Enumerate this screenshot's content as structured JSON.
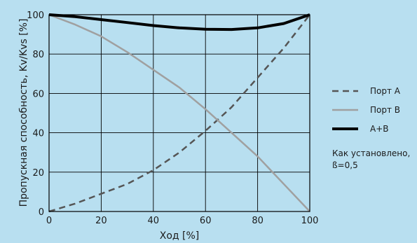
{
  "chart_data": {
    "type": "line",
    "xlabel": "Ход [%]",
    "ylabel": "Пропускная способность, Kv/Kvs [%]",
    "xlim": [
      0,
      100
    ],
    "ylim": [
      0,
      100
    ],
    "xticks": [
      0,
      20,
      40,
      60,
      80,
      100
    ],
    "yticks": [
      0,
      20,
      40,
      60,
      80,
      100
    ],
    "grid": true,
    "legend_position": "right",
    "series": [
      {
        "name": "Порт A",
        "style": "dashed",
        "color": "#555555",
        "x": [
          0,
          10,
          20,
          30,
          40,
          50,
          60,
          70,
          80,
          90,
          100
        ],
        "y": [
          0,
          4,
          9,
          14,
          21,
          30,
          41,
          53,
          68,
          83,
          100
        ]
      },
      {
        "name": "Порт B",
        "style": "solid",
        "color": "#a0a0a0",
        "x": [
          0,
          10,
          20,
          30,
          40,
          50,
          60,
          70,
          80,
          90,
          100
        ],
        "y": [
          100,
          95,
          89,
          81,
          72,
          63,
          52,
          40,
          28,
          14,
          0
        ]
      },
      {
        "name": "A+B",
        "style": "solid-bold",
        "color": "#000000",
        "x": [
          0,
          10,
          20,
          30,
          40,
          50,
          60,
          70,
          80,
          90,
          100
        ],
        "y": [
          100,
          99,
          97.5,
          96,
          94.5,
          93.3,
          92.6,
          92.5,
          93.3,
          95.5,
          100
        ]
      }
    ],
    "note": [
      "Как установлено,",
      "ß=0,5"
    ]
  }
}
